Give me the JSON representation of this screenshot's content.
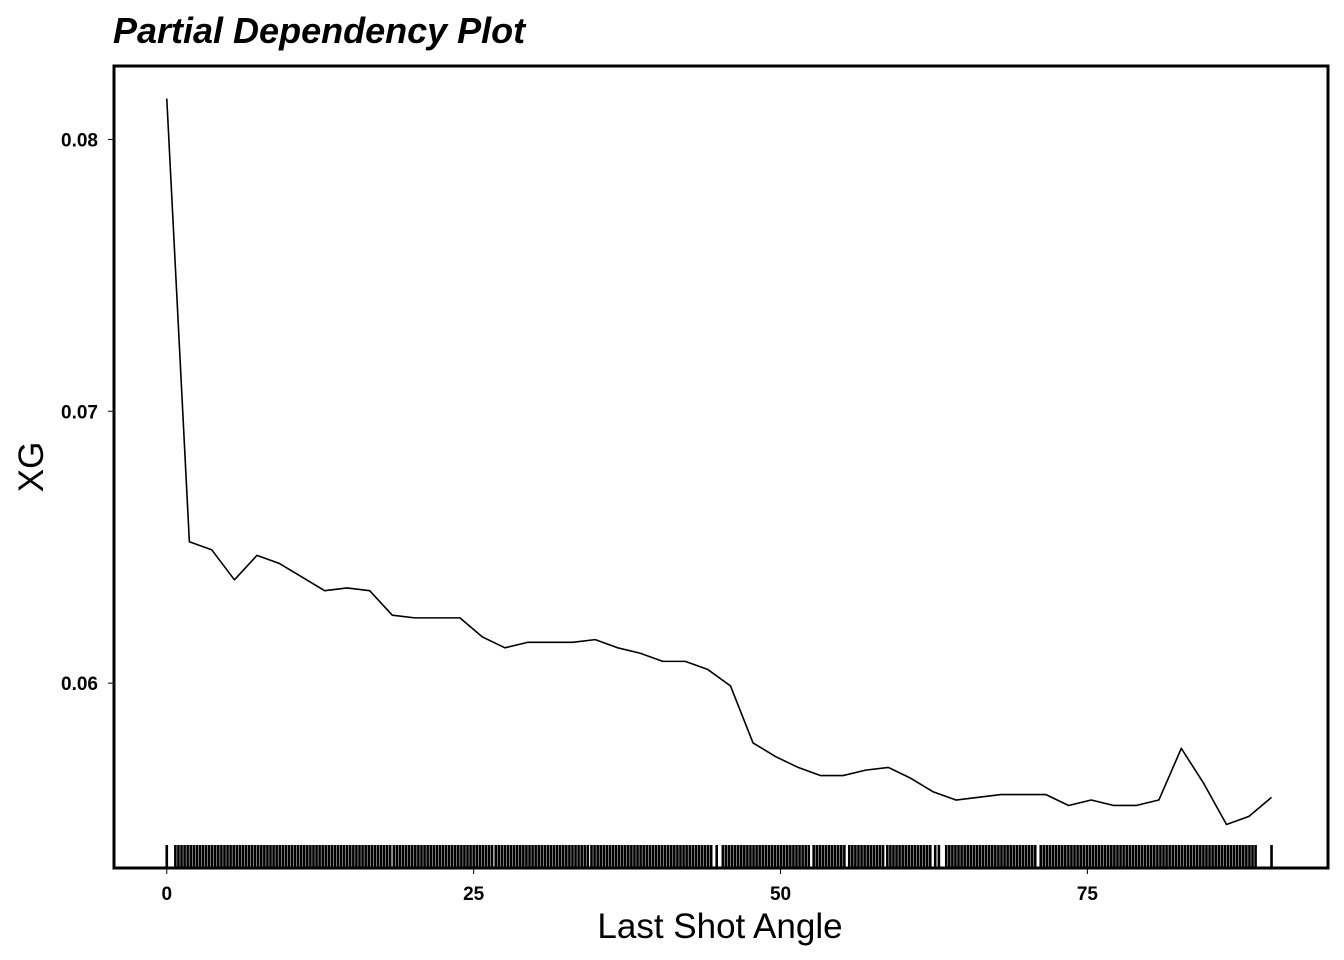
{
  "chart_data": {
    "type": "line",
    "title": "Partial Dependency Plot",
    "xlabel": "Last Shot Angle",
    "ylabel": "XG",
    "xlim": [
      -4.3,
      94.6
    ],
    "ylim": [
      0.0532,
      0.0827
    ],
    "x_ticks": [
      {
        "value": 0,
        "label": "0"
      },
      {
        "value": 25,
        "label": "25"
      },
      {
        "value": 50,
        "label": "50"
      },
      {
        "value": 75,
        "label": "75"
      }
    ],
    "y_ticks": [
      {
        "value": 0.06,
        "label": "0.06"
      },
      {
        "value": 0.07,
        "label": "0.07"
      },
      {
        "value": 0.08,
        "label": "0.08"
      }
    ],
    "grid": false,
    "line_color": "#000000",
    "series": [
      {
        "x": [
          0,
          1.84,
          3.67,
          5.51,
          7.35,
          9.18,
          11.02,
          12.86,
          14.69,
          16.53,
          18.37,
          20.2,
          22.04,
          23.88,
          25.71,
          27.55,
          29.39,
          31.22,
          33.06,
          34.9,
          36.73,
          38.57,
          40.41,
          42.24,
          44.08,
          45.92,
          47.76,
          49.59,
          51.43,
          53.27,
          55.1,
          56.94,
          58.78,
          60.61,
          62.45,
          64.29,
          66.12,
          67.96,
          69.8,
          71.63,
          73.47,
          75.31,
          77.14,
          78.98,
          80.82,
          82.65,
          84.49,
          86.33,
          88.16,
          90
        ],
        "y": [
          0.0815,
          0.0652,
          0.0649,
          0.0638,
          0.0647,
          0.0644,
          0.0639,
          0.0634,
          0.0635,
          0.0634,
          0.0625,
          0.0624,
          0.0624,
          0.0624,
          0.0617,
          0.0613,
          0.0615,
          0.0615,
          0.0615,
          0.0616,
          0.0613,
          0.0611,
          0.0608,
          0.0608,
          0.0605,
          0.0599,
          0.0578,
          0.0573,
          0.0569,
          0.0566,
          0.0566,
          0.0568,
          0.0569,
          0.0565,
          0.056,
          0.0557,
          0.0558,
          0.0559,
          0.0559,
          0.0559,
          0.0555,
          0.0557,
          0.0555,
          0.0555,
          0.0557,
          0.0576,
          0.0563,
          0.0548,
          0.0551,
          0.0558
        ]
      }
    ],
    "rug": [
      0,
      0.7,
      0.95,
      1.2,
      1.45,
      1.7,
      1.95,
      2.2,
      2.45,
      2.7,
      2.95,
      3.2,
      3.45,
      3.7,
      3.95,
      4.2,
      4.45,
      4.7,
      4.95,
      5.2,
      5.45,
      5.7,
      5.95,
      6.2,
      6.45,
      6.7,
      6.95,
      7.2,
      7.45,
      7.7,
      7.95,
      8.2,
      8.45,
      8.7,
      8.95,
      9.2,
      9.45,
      9.7,
      9.95,
      10.2,
      10.45,
      10.7,
      10.95,
      11.2,
      11.45,
      11.7,
      11.95,
      12.2,
      12.45,
      12.7,
      12.95,
      13.2,
      13.45,
      13.7,
      13.95,
      14.2,
      14.45,
      14.7,
      14.95,
      15.2,
      15.45,
      15.7,
      15.95,
      16.2,
      16.45,
      16.7,
      16.95,
      17.2,
      17.45,
      17.7,
      17.95,
      18.2,
      18.5,
      18.75,
      19.0,
      19.25,
      19.5,
      19.75,
      20.0,
      20.25,
      20.5,
      20.75,
      21.0,
      21.25,
      21.5,
      21.75,
      22.0,
      22.25,
      22.5,
      22.75,
      23.0,
      23.25,
      23.5,
      23.75,
      24.0,
      24.25,
      24.5,
      24.75,
      25.0,
      25.25,
      25.5,
      25.75,
      26.0,
      26.25,
      26.5,
      26.8,
      27.05,
      27.3,
      27.55,
      27.8,
      28.05,
      28.3,
      28.55,
      28.8,
      29.05,
      29.3,
      29.55,
      29.8,
      30.05,
      30.3,
      30.55,
      30.8,
      31.05,
      31.3,
      31.55,
      31.8,
      32.05,
      32.3,
      32.55,
      32.8,
      33.05,
      33.3,
      33.55,
      33.8,
      34.05,
      34.3,
      34.6,
      34.85,
      35.1,
      35.35,
      35.6,
      35.85,
      36.1,
      36.35,
      36.6,
      36.85,
      37.1,
      37.35,
      37.6,
      37.85,
      38.1,
      38.35,
      38.6,
      38.85,
      39.1,
      39.35,
      39.6,
      39.85,
      40.1,
      40.35,
      40.6,
      40.85,
      41.1,
      41.35,
      41.6,
      41.85,
      42.1,
      42.35,
      42.6,
      42.85,
      43.1,
      43.35,
      43.6,
      43.85,
      44.1,
      44.35,
      44.8,
      45.3,
      45.55,
      45.8,
      46.05,
      46.3,
      46.55,
      46.8,
      47.05,
      47.3,
      47.55,
      47.8,
      48.05,
      48.3,
      48.55,
      48.8,
      49.05,
      49.3,
      49.55,
      49.8,
      50.05,
      50.3,
      50.55,
      50.8,
      51.05,
      51.3,
      51.55,
      51.8,
      52.05,
      52.3,
      52.7,
      52.95,
      53.2,
      53.45,
      53.7,
      53.95,
      54.2,
      54.45,
      54.7,
      54.95,
      55.2,
      55.6,
      55.85,
      56.1,
      56.35,
      56.6,
      56.85,
      57.1,
      57.35,
      57.6,
      57.85,
      58.1,
      58.35,
      58.7,
      58.95,
      59.2,
      59.45,
      59.7,
      59.95,
      60.2,
      60.45,
      60.7,
      60.95,
      61.2,
      61.45,
      61.7,
      61.95,
      62.2,
      62.6,
      62.9,
      63.5,
      63.75,
      64.0,
      64.25,
      64.5,
      64.75,
      65.0,
      65.25,
      65.5,
      65.75,
      66.0,
      66.25,
      66.5,
      66.75,
      67.0,
      67.25,
      67.5,
      67.75,
      68.0,
      68.25,
      68.5,
      68.75,
      69.0,
      69.25,
      69.5,
      69.75,
      70.0,
      70.25,
      70.5,
      70.75,
      71.2,
      71.45,
      71.7,
      71.95,
      72.2,
      72.45,
      72.7,
      72.95,
      73.2,
      73.45,
      73.7,
      73.95,
      74.2,
      74.45,
      74.7,
      74.95,
      75.2,
      75.45,
      75.7,
      75.95,
      76.2,
      76.45,
      76.7,
      76.95,
      77.2,
      77.45,
      77.7,
      77.95,
      78.2,
      78.45,
      78.7,
      78.95,
      79.2,
      79.45,
      79.7,
      79.95,
      80.2,
      80.45,
      80.7,
      80.95,
      81.2,
      81.45,
      81.7,
      81.95,
      82.2,
      82.45,
      82.7,
      82.95,
      83.2,
      83.45,
      83.7,
      83.95,
      84.2,
      84.45,
      84.7,
      84.95,
      85.2,
      85.45,
      85.7,
      85.95,
      86.2,
      86.45,
      86.7,
      86.95,
      87.2,
      87.45,
      87.7,
      87.95,
      88.2,
      88.45,
      88.7,
      90
    ]
  }
}
